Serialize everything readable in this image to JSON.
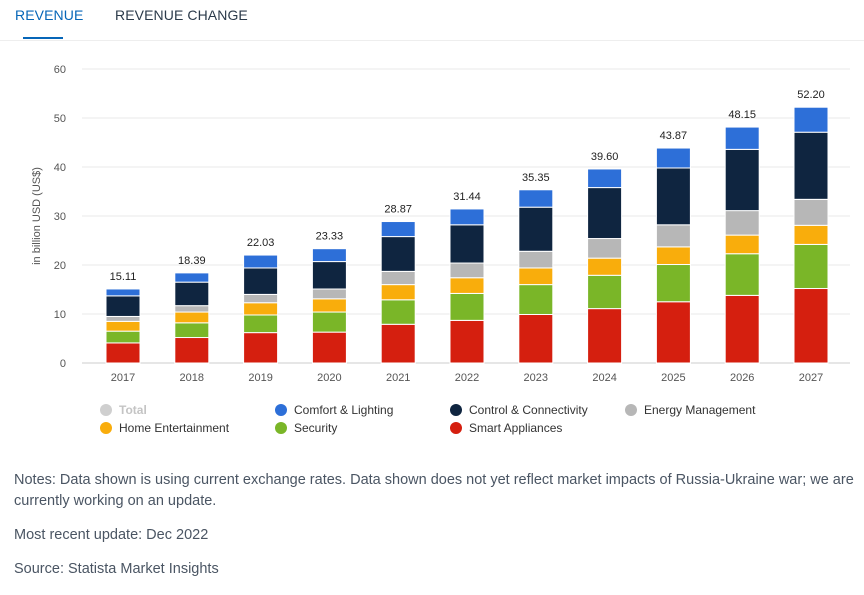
{
  "tabs": [
    {
      "label": "REVENUE",
      "active": true
    },
    {
      "label": "REVENUE CHANGE",
      "active": false
    }
  ],
  "chart_data": {
    "type": "bar",
    "stacked": true,
    "ylabel": "in billion USD (US$)",
    "xlabel": "",
    "ylim": [
      0,
      60
    ],
    "yticks": [
      0,
      10,
      20,
      30,
      40,
      50,
      60
    ],
    "categories": [
      "2017",
      "2018",
      "2019",
      "2020",
      "2021",
      "2022",
      "2023",
      "2024",
      "2025",
      "2026",
      "2027"
    ],
    "totals": [
      15.11,
      18.39,
      22.03,
      23.33,
      28.87,
      31.44,
      35.35,
      39.6,
      43.87,
      48.15,
      52.2
    ],
    "total_labels": [
      "15.11",
      "18.39",
      "22.03",
      "23.33",
      "28.87",
      "31.44",
      "35.35",
      "39.60",
      "43.87",
      "48.15",
      "52.20"
    ],
    "series": [
      {
        "name": "Smart Appliances",
        "color": "#d51f0f",
        "values": [
          4.1,
          5.2,
          6.2,
          6.3,
          7.9,
          8.7,
          9.9,
          11.1,
          12.5,
          13.8,
          15.2
        ]
      },
      {
        "name": "Security",
        "color": "#7ab628",
        "values": [
          2.4,
          3.0,
          3.6,
          4.1,
          5.0,
          5.5,
          6.1,
          6.8,
          7.6,
          8.5,
          9.0
        ]
      },
      {
        "name": "Home Entertainment",
        "color": "#f9ad0c",
        "values": [
          2.0,
          2.2,
          2.5,
          2.7,
          3.1,
          3.2,
          3.4,
          3.5,
          3.6,
          3.8,
          3.9
        ]
      },
      {
        "name": "Energy Management",
        "color": "#b7b7b7",
        "values": [
          1.0,
          1.3,
          1.7,
          2.0,
          2.7,
          3.0,
          3.4,
          4.0,
          4.5,
          5.0,
          5.3
        ]
      },
      {
        "name": "Control & Connectivity",
        "color": "#0f2540",
        "values": [
          4.2,
          4.8,
          5.4,
          5.6,
          7.1,
          7.8,
          9.0,
          10.4,
          11.6,
          12.5,
          13.7
        ]
      },
      {
        "name": "Comfort & Lighting",
        "color": "#2d6fd8",
        "values": [
          1.41,
          1.89,
          2.63,
          2.63,
          3.07,
          3.24,
          3.55,
          3.8,
          4.07,
          4.55,
          5.1
        ]
      }
    ],
    "legend": [
      {
        "name": "Total",
        "color": "#cfcfcf",
        "disabled": true
      },
      {
        "name": "Comfort & Lighting",
        "color": "#2d6fd8"
      },
      {
        "name": "Control & Connectivity",
        "color": "#0f2540"
      },
      {
        "name": "Energy Management",
        "color": "#b7b7b7"
      },
      {
        "name": "Home Entertainment",
        "color": "#f9ad0c"
      },
      {
        "name": "Security",
        "color": "#7ab628"
      },
      {
        "name": "Smart Appliances",
        "color": "#d51f0f"
      }
    ],
    "legend_placement": "bottom"
  },
  "notes": {
    "note": "Notes: Data shown is using current exchange rates. Data shown does not yet reflect market impacts of Russia-Ukraine war; we are currently working on an update.",
    "update": "Most recent update: Dec 2022",
    "source": "Source: Statista Market Insights"
  }
}
